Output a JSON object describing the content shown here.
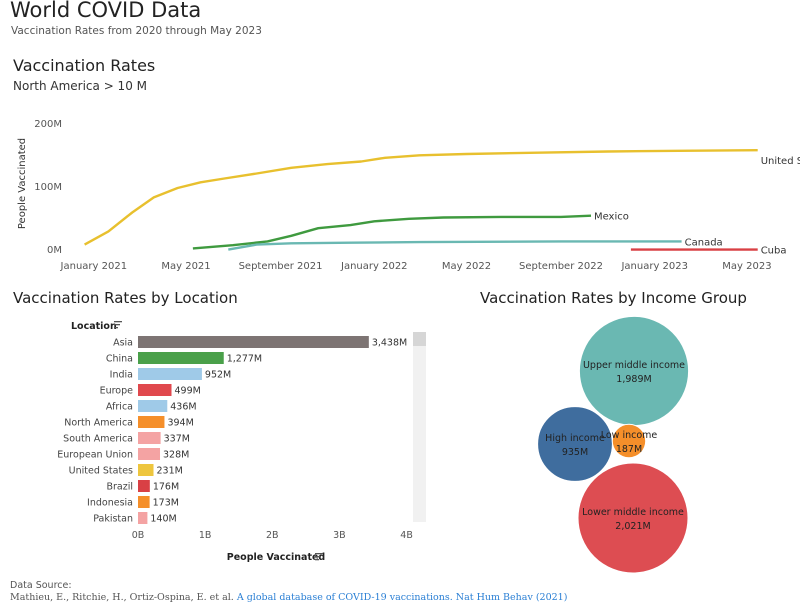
{
  "dashboard": {
    "title": "World COVID Data",
    "subtitle": "Vaccination Rates from 2020 through May 2023"
  },
  "source": {
    "label": "Data Source:",
    "citation_prefix": "Mathieu, E., Ritchie, H., Ortiz-Ospina, E. et al.",
    "citation_link": "A global database of COVID-19 vaccinations. Nat Hum Behav (2021)"
  },
  "colors": {
    "united_states": "#e8c02e",
    "mexico": "#3f9a3f",
    "canada": "#6ab8b2",
    "cuba": "#d94045"
  },
  "chart_data": [
    {
      "type": "line",
      "title": "Vaccination Rates",
      "subtitle": "North America > 10 M",
      "ylabel": "People Vaccinated",
      "ylim": [
        0,
        240
      ],
      "yunit": "M",
      "yticks": [
        {
          "value": 0,
          "label": "0M"
        },
        {
          "value": 100,
          "label": "100M"
        },
        {
          "value": 200,
          "label": "200M"
        }
      ],
      "xlim": [
        "2020-12-01",
        "2023-05-31"
      ],
      "xticks": [
        {
          "date": "2021-01-01",
          "label": "January 2021"
        },
        {
          "date": "2021-05-01",
          "label": "May 2021"
        },
        {
          "date": "2021-09-01",
          "label": "September 2021"
        },
        {
          "date": "2022-01-01",
          "label": "January 2022"
        },
        {
          "date": "2022-05-01",
          "label": "May 2022"
        },
        {
          "date": "2022-09-01",
          "label": "September 2022"
        },
        {
          "date": "2023-01-01",
          "label": "January 2023"
        },
        {
          "date": "2023-05-01",
          "label": "May 2023"
        }
      ],
      "grid": false,
      "series": [
        {
          "name": "United States",
          "color": "#e8c02e",
          "points": [
            [
              "2020-12-20",
              7
            ],
            [
              "2021-01-20",
              28
            ],
            [
              "2021-02-20",
              58
            ],
            [
              "2021-03-20",
              82
            ],
            [
              "2021-04-20",
              97
            ],
            [
              "2021-05-20",
              106
            ],
            [
              "2021-06-20",
              112
            ],
            [
              "2021-08-01",
              120
            ],
            [
              "2021-09-15",
              129
            ],
            [
              "2021-11-01",
              135
            ],
            [
              "2021-12-15",
              139
            ],
            [
              "2022-01-15",
              145
            ],
            [
              "2022-03-01",
              149
            ],
            [
              "2022-05-01",
              151
            ],
            [
              "2022-08-01",
              153
            ],
            [
              "2022-11-01",
              155
            ],
            [
              "2023-02-01",
              156
            ],
            [
              "2023-05-15",
              157
            ]
          ]
        },
        {
          "name": "Mexico",
          "color": "#3f9a3f",
          "points": [
            [
              "2021-05-10",
              1
            ],
            [
              "2021-07-01",
              6
            ],
            [
              "2021-08-15",
              12
            ],
            [
              "2021-09-15",
              21
            ],
            [
              "2021-10-20",
              33
            ],
            [
              "2021-12-01",
              38
            ],
            [
              "2022-01-01",
              44
            ],
            [
              "2022-02-15",
              48
            ],
            [
              "2022-04-01",
              50
            ],
            [
              "2022-06-15",
              51
            ],
            [
              "2022-09-01",
              51
            ],
            [
              "2022-10-10",
              53
            ]
          ]
        },
        {
          "name": "Canada",
          "color": "#6ab8b2",
          "points": [
            [
              "2021-06-25",
              -1
            ],
            [
              "2021-08-01",
              7
            ],
            [
              "2021-09-15",
              9
            ],
            [
              "2021-12-01",
              10
            ],
            [
              "2022-03-01",
              11
            ],
            [
              "2022-09-01",
              12
            ],
            [
              "2023-01-01",
              12
            ],
            [
              "2023-02-05",
              12
            ]
          ]
        },
        {
          "name": "Cuba",
          "color": "#d94045",
          "points": [
            [
              "2022-12-01",
              -1
            ],
            [
              "2023-05-15",
              -1
            ]
          ]
        }
      ]
    },
    {
      "type": "bar",
      "orientation": "horizontal",
      "title": "Vaccination Rates by Location",
      "ycolumn_label": "Location",
      "xlabel": "People Vaccinated",
      "xlim": [
        0,
        4200
      ],
      "xticks": [
        {
          "value": 0,
          "label": "0B"
        },
        {
          "value": 1000,
          "label": "1B"
        },
        {
          "value": 2000,
          "label": "2B"
        },
        {
          "value": 3000,
          "label": "3B"
        },
        {
          "value": 4000,
          "label": "4B"
        }
      ],
      "categories": [
        "Asia",
        "China",
        "India",
        "Europe",
        "Africa",
        "North America",
        "South America",
        "European Union",
        "United States",
        "Brazil",
        "Indonesia",
        "Pakistan"
      ],
      "values": [
        3438,
        1277,
        952,
        499,
        436,
        394,
        337,
        328,
        231,
        176,
        173,
        140
      ],
      "value_labels": [
        "3,438M",
        "1,277M",
        "952M",
        "499M",
        "436M",
        "394M",
        "337M",
        "328M",
        "231M",
        "176M",
        "173M",
        "140M"
      ],
      "colors": [
        "#7d7473",
        "#4aa04a",
        "#9fcae8",
        "#e0484d",
        "#9fcae8",
        "#f58f2a",
        "#f4a3a3",
        "#f4a3a3",
        "#eec63e",
        "#d94045",
        "#f58f2a",
        "#f4a3a3"
      ]
    },
    {
      "type": "bubble",
      "title": "Vaccination Rates by Income Group",
      "items": [
        {
          "name": "Upper middle income",
          "value": 1989,
          "label": "1,989M",
          "color": "#6ab8b2"
        },
        {
          "name": "High income",
          "value": 935,
          "label": "935M",
          "color": "#3f6d9e"
        },
        {
          "name": "Low income",
          "value": 187,
          "label": "187M",
          "color": "#f58f2a"
        },
        {
          "name": "Lower middle income",
          "value": 2021,
          "label": "2,021M",
          "color": "#dd4d52"
        }
      ]
    }
  ]
}
